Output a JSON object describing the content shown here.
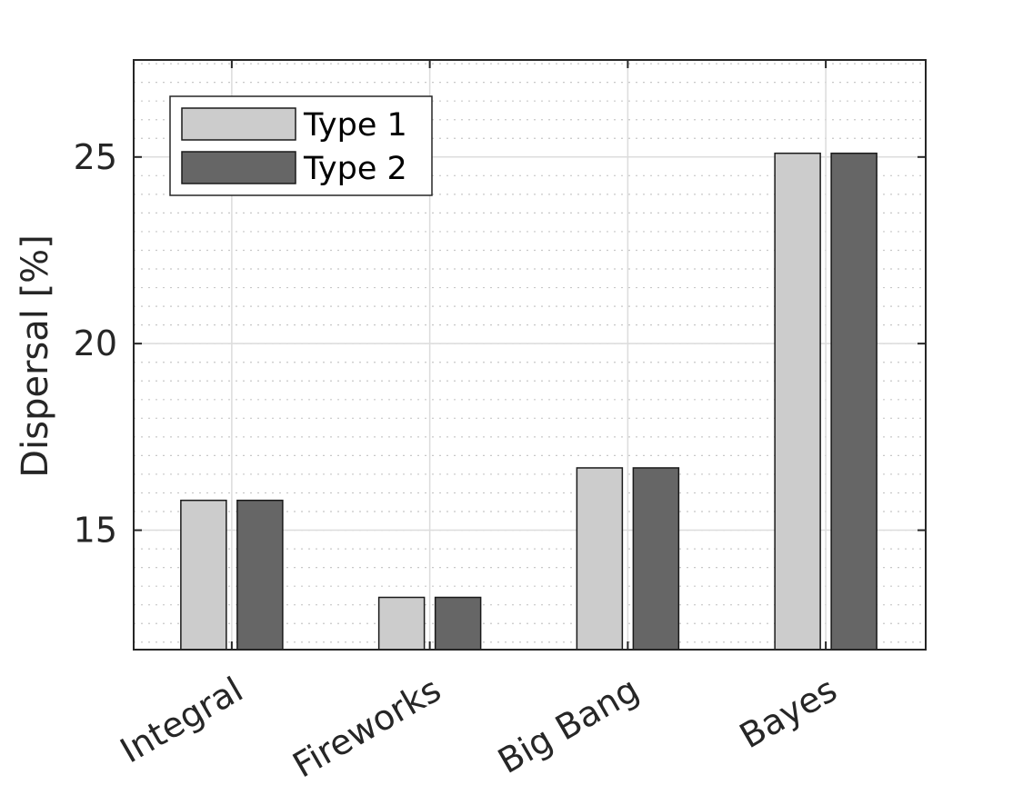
{
  "chart_data": {
    "type": "bar",
    "title": "",
    "xlabel": "",
    "ylabel": "Dispersal [%]",
    "categories": [
      "Integral",
      "Fireworks",
      "Big Bang",
      "Bayes"
    ],
    "series": [
      {
        "name": "Type 1",
        "values": [
          15.8,
          13.2,
          16.67,
          25.1
        ],
        "color": "#cccccc"
      },
      {
        "name": "Type 2",
        "values": [
          15.8,
          13.2,
          16.67,
          25.1
        ],
        "color": "#666666"
      }
    ],
    "ylim": [
      11.8,
      27.6
    ],
    "yticks": [
      15,
      20,
      25
    ],
    "ytick_labels": [
      "15",
      "20",
      "25"
    ],
    "grid": true,
    "minor_grid": true,
    "legend_position": "top-left"
  }
}
